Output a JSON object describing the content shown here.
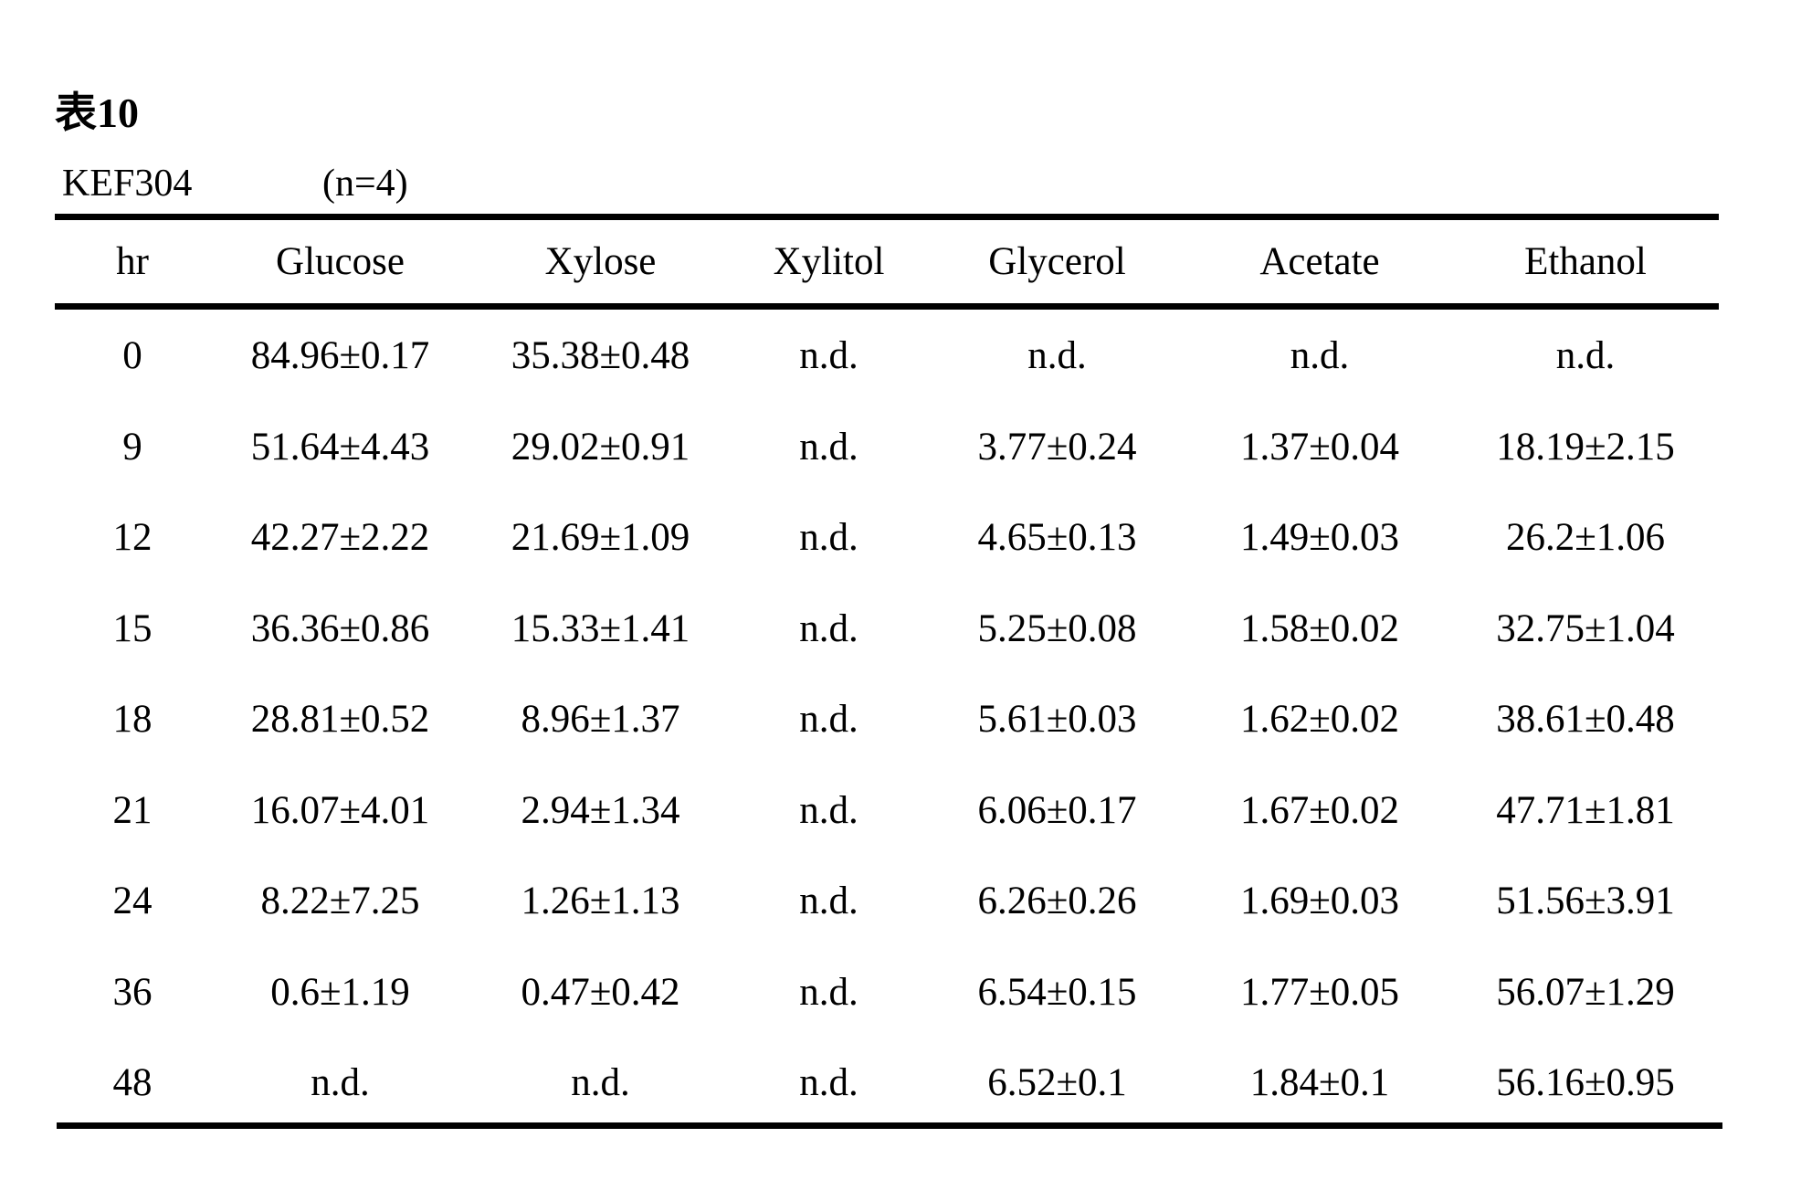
{
  "table_label": {
    "prefix": "表",
    "number": "10"
  },
  "strain": "KEF304",
  "sample_size": "(n=4)",
  "table": {
    "headers": [
      "hr",
      "Glucose",
      "Xylose",
      "Xylitol",
      "Glycerol",
      "Acetate",
      "Ethanol"
    ],
    "rows": [
      [
        "0",
        "84.96±0.17",
        "35.38±0.48",
        "n.d.",
        "n.d.",
        "n.d.",
        "n.d."
      ],
      [
        "9",
        "51.64±4.43",
        "29.02±0.91",
        "n.d.",
        "3.77±0.24",
        "1.37±0.04",
        "18.19±2.15"
      ],
      [
        "12",
        "42.27±2.22",
        "21.69±1.09",
        "n.d.",
        "4.65±0.13",
        "1.49±0.03",
        "26.2±1.06"
      ],
      [
        "15",
        "36.36±0.86",
        "15.33±1.41",
        "n.d.",
        "5.25±0.08",
        "1.58±0.02",
        "32.75±1.04"
      ],
      [
        "18",
        "28.81±0.52",
        "8.96±1.37",
        "n.d.",
        "5.61±0.03",
        "1.62±0.02",
        "38.61±0.48"
      ],
      [
        "21",
        "16.07±4.01",
        "2.94±1.34",
        "n.d.",
        "6.06±0.17",
        "1.67±0.02",
        "47.71±1.81"
      ],
      [
        "24",
        "8.22±7.25",
        "1.26±1.13",
        "n.d.",
        "6.26±0.26",
        "1.69±0.03",
        "51.56±3.91"
      ],
      [
        "36",
        "0.6±1.19",
        "0.47±0.42",
        "n.d.",
        "6.54±0.15",
        "1.77±0.05",
        "56.07±1.29"
      ],
      [
        "48",
        "n.d.",
        "n.d.",
        "n.d.",
        "6.52±0.1",
        "1.84±0.1",
        "56.16±0.95"
      ]
    ]
  }
}
